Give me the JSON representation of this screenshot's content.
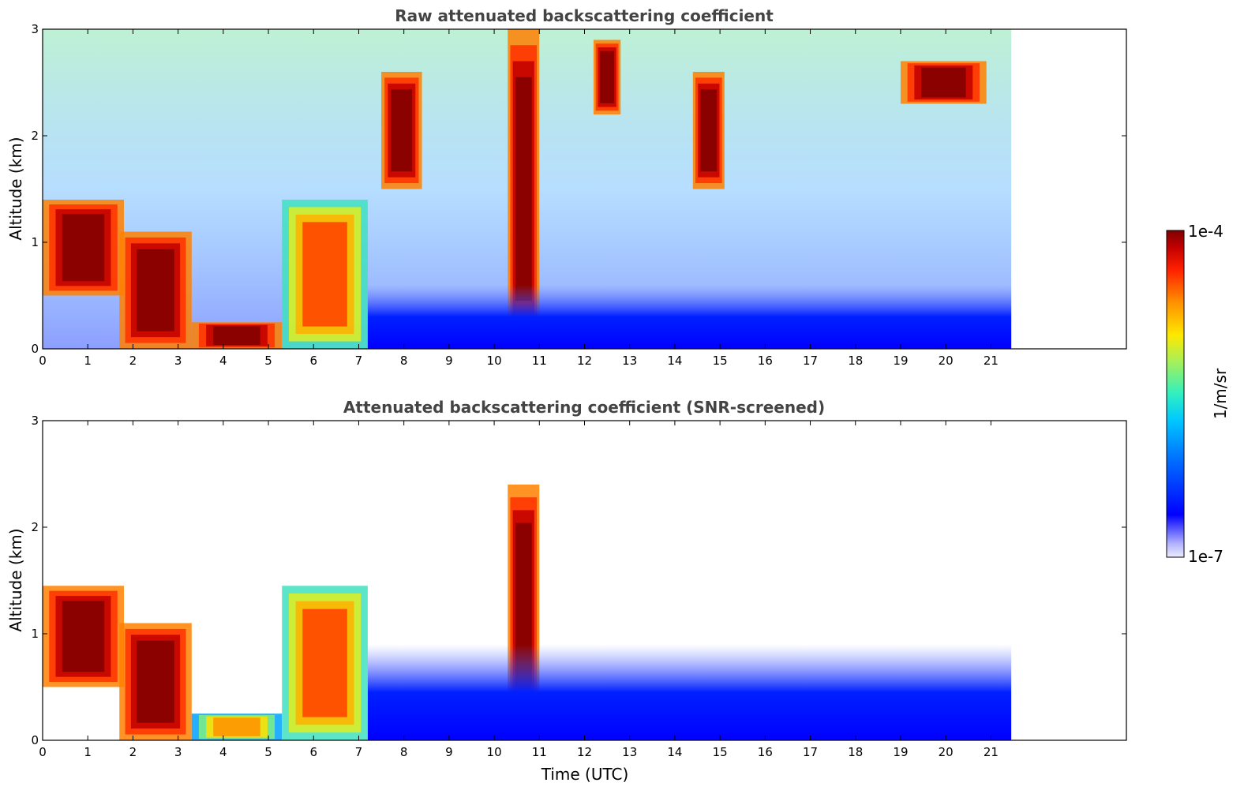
{
  "chart_data": [
    {
      "type": "heatmap",
      "title": "Raw attenuated backscattering coefficient",
      "xlabel": "",
      "ylabel": "Altitude (km)",
      "xlim": [
        0,
        24
      ],
      "ylim": [
        0,
        3
      ],
      "x_ticks": [
        "0",
        "1",
        "2",
        "3",
        "4",
        "5",
        "6",
        "7",
        "8",
        "9",
        "10",
        "11",
        "12",
        "13",
        "14",
        "15",
        "16",
        "17",
        "18",
        "19",
        "20",
        "21"
      ],
      "y_ticks": [
        "0",
        "1",
        "2",
        "3"
      ],
      "data_extent_x": [
        0,
        21.45
      ],
      "features": [
        {
          "kind": "cloud_layer",
          "x": [
            0.0,
            1.8
          ],
          "y": [
            0.5,
            1.4
          ],
          "level": "high"
        },
        {
          "kind": "cloud_column",
          "x": [
            1.7,
            3.3
          ],
          "y": [
            0.0,
            1.1
          ],
          "level": "high"
        },
        {
          "kind": "surface_layer",
          "x": [
            3.3,
            5.3
          ],
          "y": [
            0.0,
            0.25
          ],
          "level": "high"
        },
        {
          "kind": "cloud_column",
          "x": [
            5.3,
            7.2
          ],
          "y": [
            0.0,
            1.4
          ],
          "level": "mid-high"
        },
        {
          "kind": "cloud_column",
          "x": [
            10.3,
            11.0
          ],
          "y": [
            0.0,
            3.0
          ],
          "level": "high"
        },
        {
          "kind": "cirrus",
          "x": [
            7.5,
            8.4
          ],
          "y": [
            1.5,
            2.6
          ],
          "level": "high"
        },
        {
          "kind": "cirrus",
          "x": [
            12.2,
            12.8
          ],
          "y": [
            2.2,
            2.9
          ],
          "level": "high"
        },
        {
          "kind": "cirrus",
          "x": [
            14.4,
            15.1
          ],
          "y": [
            1.5,
            2.6
          ],
          "level": "high"
        },
        {
          "kind": "cirrus",
          "x": [
            19.0,
            20.9
          ],
          "y": [
            2.3,
            2.7
          ],
          "level": "high"
        },
        {
          "kind": "boundary_layer",
          "x": [
            7.2,
            21.45
          ],
          "y": [
            0.0,
            0.6
          ],
          "level": "low"
        }
      ]
    },
    {
      "type": "heatmap",
      "title": "Attenuated backscattering coefficient (SNR-screened)",
      "xlabel": "Time (UTC)",
      "ylabel": "Altitude (km)",
      "xlim": [
        0,
        24
      ],
      "ylim": [
        0,
        3
      ],
      "x_ticks": [
        "0",
        "1",
        "2",
        "3",
        "4",
        "5",
        "6",
        "7",
        "8",
        "9",
        "10",
        "11",
        "12",
        "13",
        "14",
        "15",
        "16",
        "17",
        "18",
        "19",
        "20",
        "21"
      ],
      "y_ticks": [
        "0",
        "1",
        "2",
        "3"
      ],
      "data_extent_x": [
        0,
        21.45
      ],
      "features": [
        {
          "kind": "cloud_layer",
          "x": [
            0.0,
            1.8
          ],
          "y": [
            0.5,
            1.45
          ],
          "level": "high"
        },
        {
          "kind": "cloud_column",
          "x": [
            1.7,
            3.3
          ],
          "y": [
            0.0,
            1.1
          ],
          "level": "high"
        },
        {
          "kind": "surface_layer",
          "x": [
            3.3,
            5.3
          ],
          "y": [
            0.0,
            0.25
          ],
          "level": "mid"
        },
        {
          "kind": "cloud_column",
          "x": [
            5.3,
            7.2
          ],
          "y": [
            0.0,
            1.45
          ],
          "level": "mid-high"
        },
        {
          "kind": "cloud_column",
          "x": [
            10.3,
            11.0
          ],
          "y": [
            0.0,
            2.4
          ],
          "level": "high"
        },
        {
          "kind": "boundary_layer",
          "x": [
            7.2,
            21.45
          ],
          "y": [
            0.0,
            0.9
          ],
          "level": "low"
        }
      ]
    }
  ],
  "colorbar": {
    "label": "1/m/sr",
    "max_label": "1e-4",
    "min_label": "1e-7",
    "scale": "log",
    "colors": [
      "#e8e8ff",
      "#c8c8ff",
      "#9898ff",
      "#6060ff",
      "#0000ff",
      "#0040ff",
      "#0080ff",
      "#00b0ff",
      "#00e0e0",
      "#40f0a0",
      "#a0f060",
      "#e0f020",
      "#ffe000",
      "#ffb000",
      "#ff7000",
      "#ff3000",
      "#e00000",
      "#a00000",
      "#800000"
    ]
  }
}
